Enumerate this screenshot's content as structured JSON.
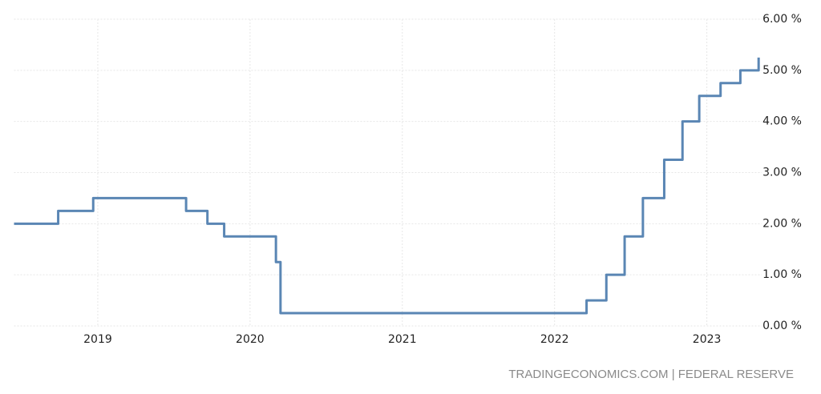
{
  "chart_data": {
    "type": "step",
    "x": [
      2018.45,
      2018.74,
      2018.97,
      2019.58,
      2019.72,
      2019.83,
      2020.17,
      2020.2,
      2022.21,
      2022.34,
      2022.46,
      2022.58,
      2022.72,
      2022.84,
      2022.95,
      2023.09,
      2023.22,
      2023.34
    ],
    "values": [
      2,
      2.25,
      2.5,
      2.25,
      2,
      1.75,
      1.25,
      0.25,
      0.5,
      1,
      1.75,
      2.5,
      3.25,
      4,
      4.5,
      4.75,
      5,
      5.25
    ],
    "color": "#5a86b4",
    "xlim": [
      2018.45,
      2023.36
    ],
    "xticks": [
      2019,
      2020,
      2021,
      2022,
      2023
    ],
    "ylim": [
      0,
      6
    ],
    "yticks": [
      {
        "value": 0,
        "label": "0.00 %"
      },
      {
        "value": 1,
        "label": "1.00 %"
      },
      {
        "value": 2,
        "label": "2.00 %"
      },
      {
        "value": 3,
        "label": "3.00 %"
      },
      {
        "value": 4,
        "label": "4.00 %"
      },
      {
        "value": 5,
        "label": "5.00 %"
      },
      {
        "value": 6,
        "label": "6.00 %"
      }
    ],
    "grid": true,
    "source": "TRADINGECONOMICS.COM | FEDERAL RESERVE"
  }
}
